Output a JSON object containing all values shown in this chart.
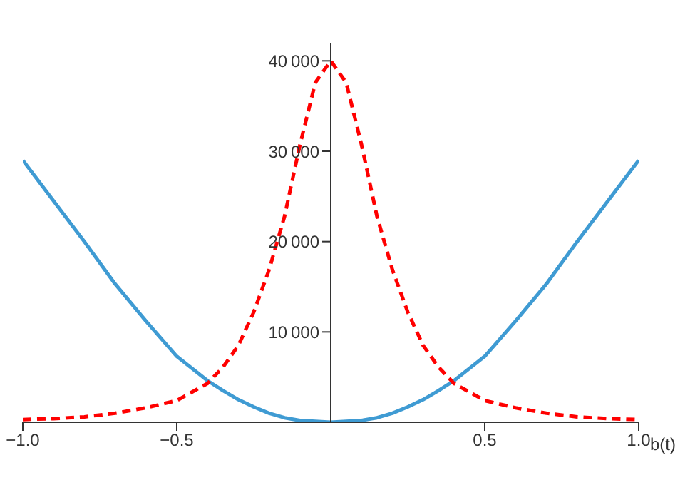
{
  "chart_data": {
    "type": "line",
    "xlabel": "b(t)",
    "x": [
      -1,
      -0.9,
      -0.8,
      -0.7,
      -0.6,
      -0.5,
      -0.4,
      -0.35,
      -0.3,
      -0.25,
      -0.2,
      -0.15,
      -0.1,
      -0.05,
      0,
      0.05,
      0.1,
      0.15,
      0.2,
      0.25,
      0.3,
      0.35,
      0.4,
      0.5,
      0.6,
      0.7,
      0.8,
      0.9,
      1
    ],
    "series": [
      {
        "color": "#3f9bd3",
        "line_style": "solid",
        "values": [
          29000,
          24500,
          20000,
          15300,
          11200,
          7300,
          4600,
          3500,
          2500,
          1700,
          1000,
          500,
          200,
          100,
          0,
          100,
          200,
          500,
          1000,
          1700,
          2500,
          3500,
          4600,
          7300,
          11200,
          15300,
          20000,
          24500,
          29000
        ]
      },
      {
        "color": "#ff0000",
        "line_style": "dashed",
        "values": [
          300,
          400,
          600,
          1000,
          1600,
          2400,
          4300,
          6100,
          8500,
          12200,
          16900,
          22800,
          30700,
          37600,
          40000,
          37600,
          30700,
          22800,
          16900,
          12200,
          8500,
          6100,
          4300,
          2400,
          1600,
          1000,
          600,
          400,
          300
        ]
      }
    ],
    "xlim": [
      -1,
      1
    ],
    "xticks": [
      {
        "value": -1,
        "label": "−1.0"
      },
      -0.5,
      0.5,
      {
        "value": 1,
        "label": "1.0"
      }
    ],
    "ylim": [
      0,
      42000
    ],
    "yticks": [
      10000,
      20000,
      30000,
      40000
    ],
    "grid": false,
    "legend": false,
    "marker": "none"
  }
}
